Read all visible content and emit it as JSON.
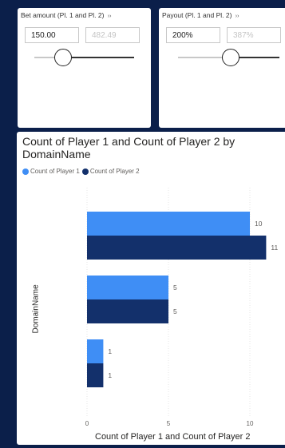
{
  "slicers": [
    {
      "title": "Bet amount (Pl. 1 and Pl. 2)",
      "min_value": "150.00",
      "max_value": "482.49",
      "expand_icon": "chevron-double-right-icon"
    },
    {
      "title": "Payout (Pl. 1 and Pl. 2)",
      "min_value": "200%",
      "max_value": "387%",
      "expand_icon": "chevron-double-right-icon"
    }
  ],
  "chevron_glyph": "››",
  "chart": {
    "title": "Count of Player 1 and Count of Player 2 by DomainName",
    "legend": [
      "Count of Player 1",
      "Count of Player 2"
    ],
    "y_title": "DomainName",
    "x_title": "Count of Player 1 and Count of Player 2"
  },
  "colors": {
    "player1": "#3f8ef5",
    "player2": "#13306b",
    "background": "#0b1f4a"
  },
  "chart_data": {
    "type": "bar",
    "orientation": "horizontal",
    "categories": [
      "",
      "",
      ""
    ],
    "series": [
      {
        "name": "Count of Player 1",
        "values": [
          10,
          5,
          1
        ]
      },
      {
        "name": "Count of Player 2",
        "values": [
          11,
          5,
          1
        ]
      }
    ],
    "xlim": [
      0,
      11
    ],
    "x_ticks": [
      0,
      5,
      10
    ],
    "grid": true,
    "legend_position": "top-left",
    "title": "Count of Player 1 and Count of Player 2 by DomainName",
    "xlabel": "Count of Player 1 and Count of Player 2",
    "ylabel": "DomainName"
  }
}
